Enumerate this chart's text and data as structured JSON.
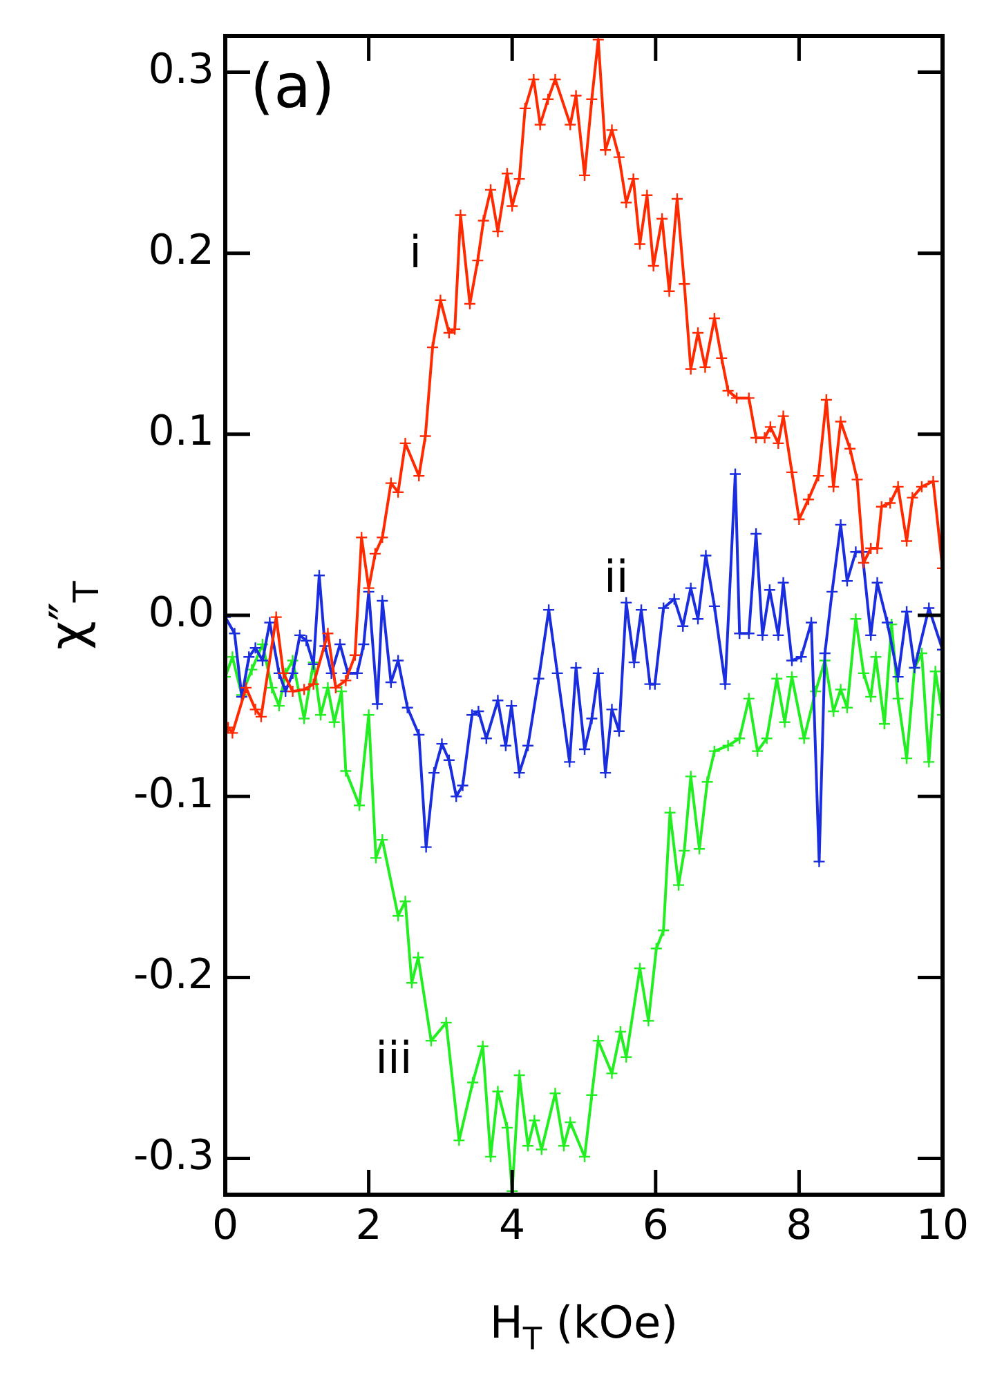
{
  "chart_data": {
    "type": "line",
    "xlabel": "H$_{T}$ (kOe)",
    "ylabel": "χ″$_{T}$",
    "xlim": [
      0,
      10
    ],
    "xticks": [
      0,
      2,
      4,
      6,
      8,
      10
    ],
    "ylim": [
      -0.32,
      0.32
    ],
    "yticks": [
      -0.3,
      -0.2,
      -0.1,
      {
        "value": 0,
        "label": "0.0"
      },
      0.1,
      0.2,
      0.3
    ],
    "grid": false,
    "legend": false,
    "marker": "cross",
    "line_style": "solid",
    "annotations": [
      "(a)"
    ],
    "series": [
      {
        "name": "i",
        "color": "#ff2a00",
        "x": [
          0.04,
          0.1,
          0.29,
          0.42,
          0.5,
          0.71,
          0.81,
          0.94,
          1.1,
          1.23,
          1.43,
          1.54,
          1.68,
          1.81,
          1.9,
          2.0,
          2.09,
          2.19,
          2.31,
          2.41,
          2.51,
          2.7,
          2.79,
          2.89,
          3.0,
          3.12,
          3.2,
          3.28,
          3.41,
          3.52,
          3.6,
          3.7,
          3.8,
          3.93,
          4.0,
          4.1,
          4.18,
          4.3,
          4.39,
          4.5,
          4.6,
          4.81,
          4.89,
          5.01,
          5.11,
          5.2,
          5.3,
          5.39,
          5.49,
          5.59,
          5.69,
          5.78,
          5.88,
          5.97,
          6.09,
          6.19,
          6.3,
          6.4,
          6.49,
          6.59,
          6.69,
          6.82,
          6.92,
          7.01,
          7.13,
          7.3,
          7.4,
          7.52,
          7.6,
          7.71,
          7.78,
          7.9,
          8.0,
          8.13,
          8.27,
          8.38,
          8.48,
          8.58,
          8.71,
          8.81,
          8.9,
          9.0,
          9.09,
          9.15,
          9.27,
          9.38,
          9.5,
          9.58,
          9.71,
          9.87,
          10.0
        ],
        "values": [
          -0.062,
          -0.065,
          -0.04,
          -0.052,
          -0.056,
          -0.001,
          -0.032,
          -0.042,
          -0.041,
          -0.038,
          -0.01,
          -0.04,
          -0.036,
          -0.022,
          0.043,
          0.015,
          0.034,
          0.043,
          0.073,
          0.068,
          0.095,
          0.077,
          0.099,
          0.148,
          0.174,
          0.156,
          0.158,
          0.221,
          0.172,
          0.196,
          0.218,
          0.235,
          0.212,
          0.244,
          0.226,
          0.241,
          0.28,
          0.296,
          0.271,
          0.285,
          0.296,
          0.271,
          0.287,
          0.243,
          0.285,
          0.318,
          0.257,
          0.268,
          0.253,
          0.228,
          0.241,
          0.205,
          0.232,
          0.193,
          0.219,
          0.179,
          0.23,
          0.183,
          0.136,
          0.156,
          0.137,
          0.164,
          0.142,
          0.124,
          0.12,
          0.12,
          0.098,
          0.098,
          0.104,
          0.095,
          0.11,
          0.079,
          0.053,
          0.064,
          0.077,
          0.119,
          0.071,
          0.107,
          0.092,
          0.075,
          0.029,
          0.037,
          0.037,
          0.06,
          0.062,
          0.071,
          0.041,
          0.065,
          0.071,
          0.074,
          0.026
        ]
      },
      {
        "name": "ii",
        "color": "#1a2ee0",
        "x": [
          0.0,
          0.13,
          0.23,
          0.33,
          0.42,
          0.52,
          0.62,
          0.75,
          0.84,
          0.94,
          1.04,
          1.13,
          1.23,
          1.31,
          1.39,
          1.48,
          1.6,
          1.71,
          1.84,
          1.93,
          2.0,
          2.12,
          2.19,
          2.31,
          2.41,
          2.54,
          2.7,
          2.8,
          2.91,
          3.02,
          3.12,
          3.22,
          3.31,
          3.44,
          3.53,
          3.64,
          3.8,
          3.91,
          3.99,
          4.1,
          4.22,
          4.37,
          4.51,
          4.63,
          4.8,
          4.89,
          5.01,
          5.11,
          5.2,
          5.3,
          5.39,
          5.49,
          5.59,
          5.7,
          5.8,
          5.92,
          5.99,
          6.11,
          6.26,
          6.38,
          6.49,
          6.59,
          6.7,
          6.82,
          6.97,
          7.11,
          7.17,
          7.3,
          7.4,
          7.49,
          7.59,
          7.71,
          7.78,
          7.9,
          8.03,
          8.17,
          8.28,
          8.36,
          8.46,
          8.58,
          8.67,
          8.79,
          8.88,
          9.0,
          9.09,
          9.23,
          9.38,
          9.5,
          9.61,
          9.81,
          10.0
        ],
        "values": [
          -0.001,
          -0.01,
          -0.045,
          -0.023,
          -0.018,
          -0.025,
          -0.004,
          -0.032,
          -0.042,
          -0.032,
          -0.011,
          -0.014,
          -0.027,
          0.022,
          -0.017,
          -0.032,
          -0.016,
          -0.032,
          -0.032,
          -0.016,
          0.013,
          -0.049,
          0.008,
          -0.037,
          -0.025,
          -0.051,
          -0.066,
          -0.128,
          -0.087,
          -0.071,
          -0.08,
          -0.1,
          -0.094,
          -0.055,
          -0.053,
          -0.068,
          -0.047,
          -0.072,
          -0.05,
          -0.087,
          -0.072,
          -0.035,
          0.003,
          -0.032,
          -0.081,
          -0.029,
          -0.074,
          -0.057,
          -0.032,
          -0.087,
          -0.052,
          -0.064,
          0.007,
          -0.026,
          0.003,
          -0.038,
          -0.038,
          0.004,
          0.009,
          -0.006,
          0.015,
          -0.002,
          0.033,
          0.005,
          -0.038,
          0.078,
          -0.01,
          -0.01,
          0.045,
          -0.011,
          0.014,
          -0.011,
          0.018,
          -0.025,
          -0.023,
          -0.004,
          -0.136,
          -0.021,
          0.013,
          0.05,
          0.019,
          0.035,
          0.035,
          -0.011,
          0.018,
          -0.004,
          -0.034,
          0.002,
          -0.029,
          0.004,
          -0.019
        ]
      },
      {
        "name": "iii",
        "color": "#22ee22",
        "x": [
          0.0,
          0.1,
          0.23,
          0.37,
          0.52,
          0.65,
          0.75,
          0.84,
          0.94,
          1.1,
          1.23,
          1.33,
          1.43,
          1.52,
          1.62,
          1.68,
          1.87,
          2.0,
          2.1,
          2.19,
          2.41,
          2.51,
          2.6,
          2.69,
          2.87,
          3.08,
          3.26,
          3.45,
          3.59,
          3.7,
          3.8,
          3.93,
          4.0,
          4.1,
          4.22,
          4.31,
          4.41,
          4.6,
          4.72,
          4.81,
          5.01,
          5.11,
          5.2,
          5.39,
          5.51,
          5.59,
          5.78,
          5.9,
          6.01,
          6.11,
          6.2,
          6.32,
          6.4,
          6.49,
          6.61,
          6.72,
          6.82,
          7.01,
          7.17,
          7.3,
          7.42,
          7.55,
          7.69,
          7.8,
          7.9,
          8.07,
          8.23,
          8.36,
          8.48,
          8.58,
          8.67,
          8.79,
          8.9,
          9.0,
          9.07,
          9.19,
          9.29,
          9.38,
          9.5,
          9.61,
          9.71,
          9.81,
          9.9,
          10.0
        ],
        "values": [
          -0.034,
          -0.023,
          -0.044,
          -0.03,
          -0.016,
          -0.04,
          -0.05,
          -0.032,
          -0.025,
          -0.057,
          -0.026,
          -0.055,
          -0.04,
          -0.059,
          -0.042,
          -0.086,
          -0.105,
          -0.055,
          -0.134,
          -0.124,
          -0.166,
          -0.158,
          -0.203,
          -0.189,
          -0.235,
          -0.225,
          -0.29,
          -0.258,
          -0.238,
          -0.299,
          -0.263,
          -0.283,
          -0.318,
          -0.254,
          -0.293,
          -0.279,
          -0.295,
          -0.264,
          -0.293,
          -0.28,
          -0.299,
          -0.265,
          -0.235,
          -0.253,
          -0.23,
          -0.244,
          -0.195,
          -0.224,
          -0.184,
          -0.174,
          -0.109,
          -0.149,
          -0.13,
          -0.089,
          -0.129,
          -0.092,
          -0.075,
          -0.072,
          -0.068,
          -0.046,
          -0.075,
          -0.068,
          -0.035,
          -0.059,
          -0.034,
          -0.068,
          -0.042,
          -0.025,
          -0.053,
          -0.041,
          -0.051,
          -0.002,
          -0.032,
          -0.045,
          -0.023,
          -0.06,
          -0.005,
          -0.046,
          -0.079,
          -0.029,
          -0.021,
          -0.081,
          -0.031,
          -0.055
        ]
      }
    ]
  }
}
